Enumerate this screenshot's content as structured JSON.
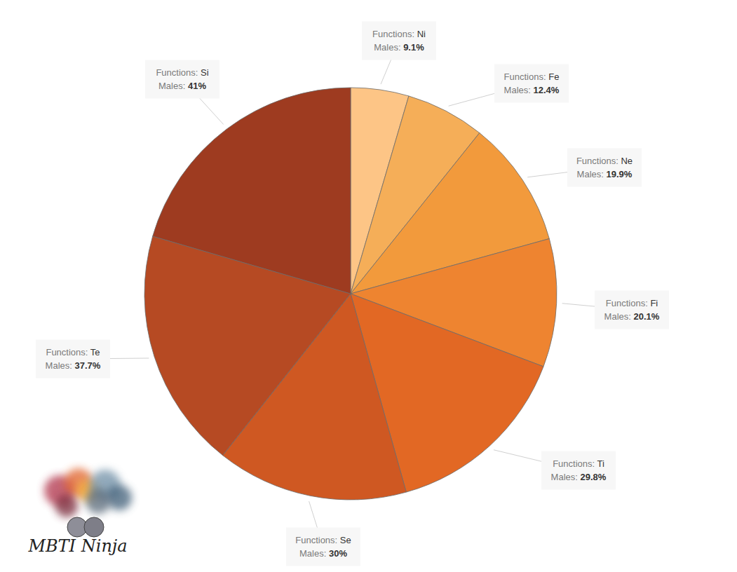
{
  "chart_data": {
    "type": "pie",
    "category_title": "Functions:",
    "value_title": "Males:",
    "categories": [
      "Ni",
      "Fe",
      "Ne",
      "Fi",
      "Ti",
      "Se",
      "Te",
      "Si"
    ],
    "values": [
      9.1,
      12.4,
      19.9,
      20.1,
      29.8,
      30,
      37.7,
      41
    ],
    "value_labels": [
      "9.1%",
      "12.4%",
      "19.9%",
      "20.1%",
      "29.8%",
      "30%",
      "37.7%",
      "41%"
    ],
    "colors": [
      "#fdc586",
      "#f5ae58",
      "#f29a3c",
      "#ee8430",
      "#e26824",
      "#cf5822",
      "#b64a23",
      "#9e3b20"
    ],
    "data_labels": true,
    "watermark": "MBTI Ninja"
  }
}
